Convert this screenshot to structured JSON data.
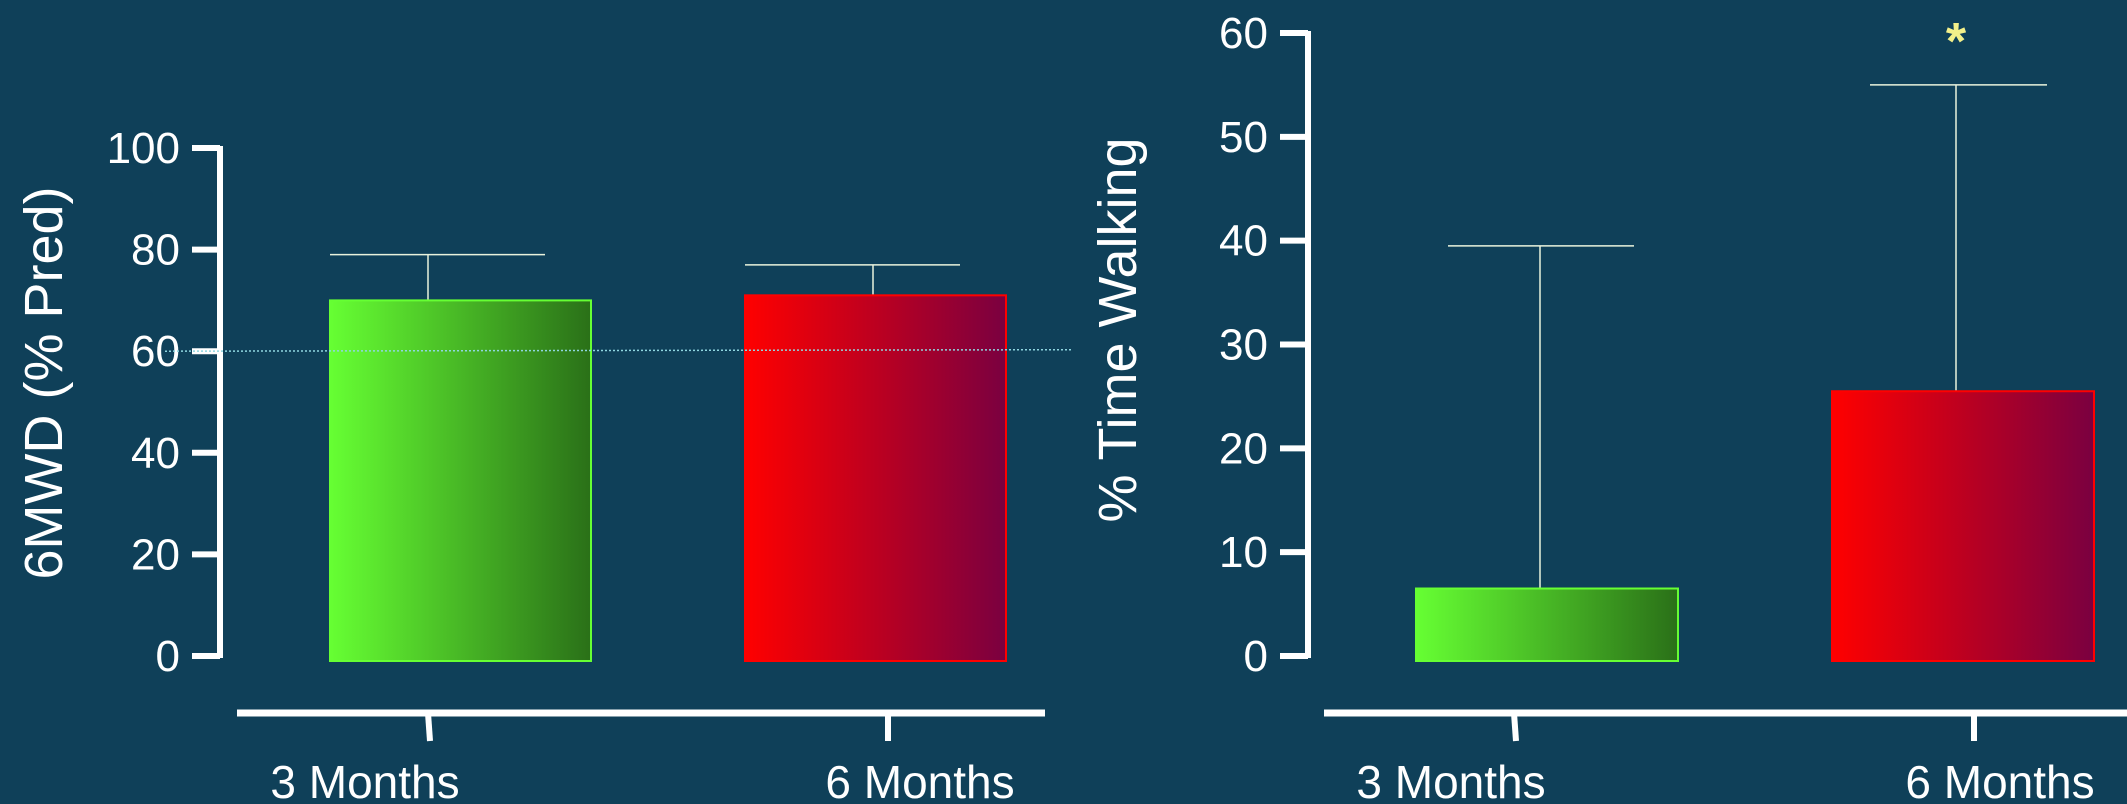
{
  "colors": {
    "background": "#0f4059",
    "axis": "#ffffff",
    "whisker": "#e9f2dc",
    "reference_line": "#8fd6e0",
    "significance": "#f3f08a",
    "green_light": "#66ff33",
    "green_dark": "#2a7018",
    "red_light": "#ff0000",
    "red_dark": "#7a0040"
  },
  "chart_data": [
    {
      "type": "bar",
      "title": "",
      "ylabel": "6MWD (% Pred)",
      "xlabel": "",
      "ylim": [
        0,
        100
      ],
      "yticks": [
        "0",
        "20",
        "40",
        "60",
        "80",
        "100"
      ],
      "categories": [
        "3 Months",
        "6 Months"
      ],
      "values": [
        70,
        71
      ],
      "error_upper": [
        79,
        77
      ],
      "reference_line": 60,
      "bar_colors": [
        "green",
        "red"
      ],
      "grid": false
    },
    {
      "type": "bar",
      "title": "",
      "ylabel": "% Time Walking",
      "xlabel": "",
      "ylim": [
        0,
        60
      ],
      "yticks": [
        "0",
        "10",
        "20",
        "30",
        "40",
        "50",
        "60"
      ],
      "categories": [
        "3 Months",
        "6 Months"
      ],
      "values": [
        6.5,
        25.5
      ],
      "error_upper": [
        39.5,
        55
      ],
      "bar_colors": [
        "green",
        "red"
      ],
      "annotations": [
        {
          "category": "6 Months",
          "text": "*"
        }
      ],
      "grid": false
    }
  ]
}
